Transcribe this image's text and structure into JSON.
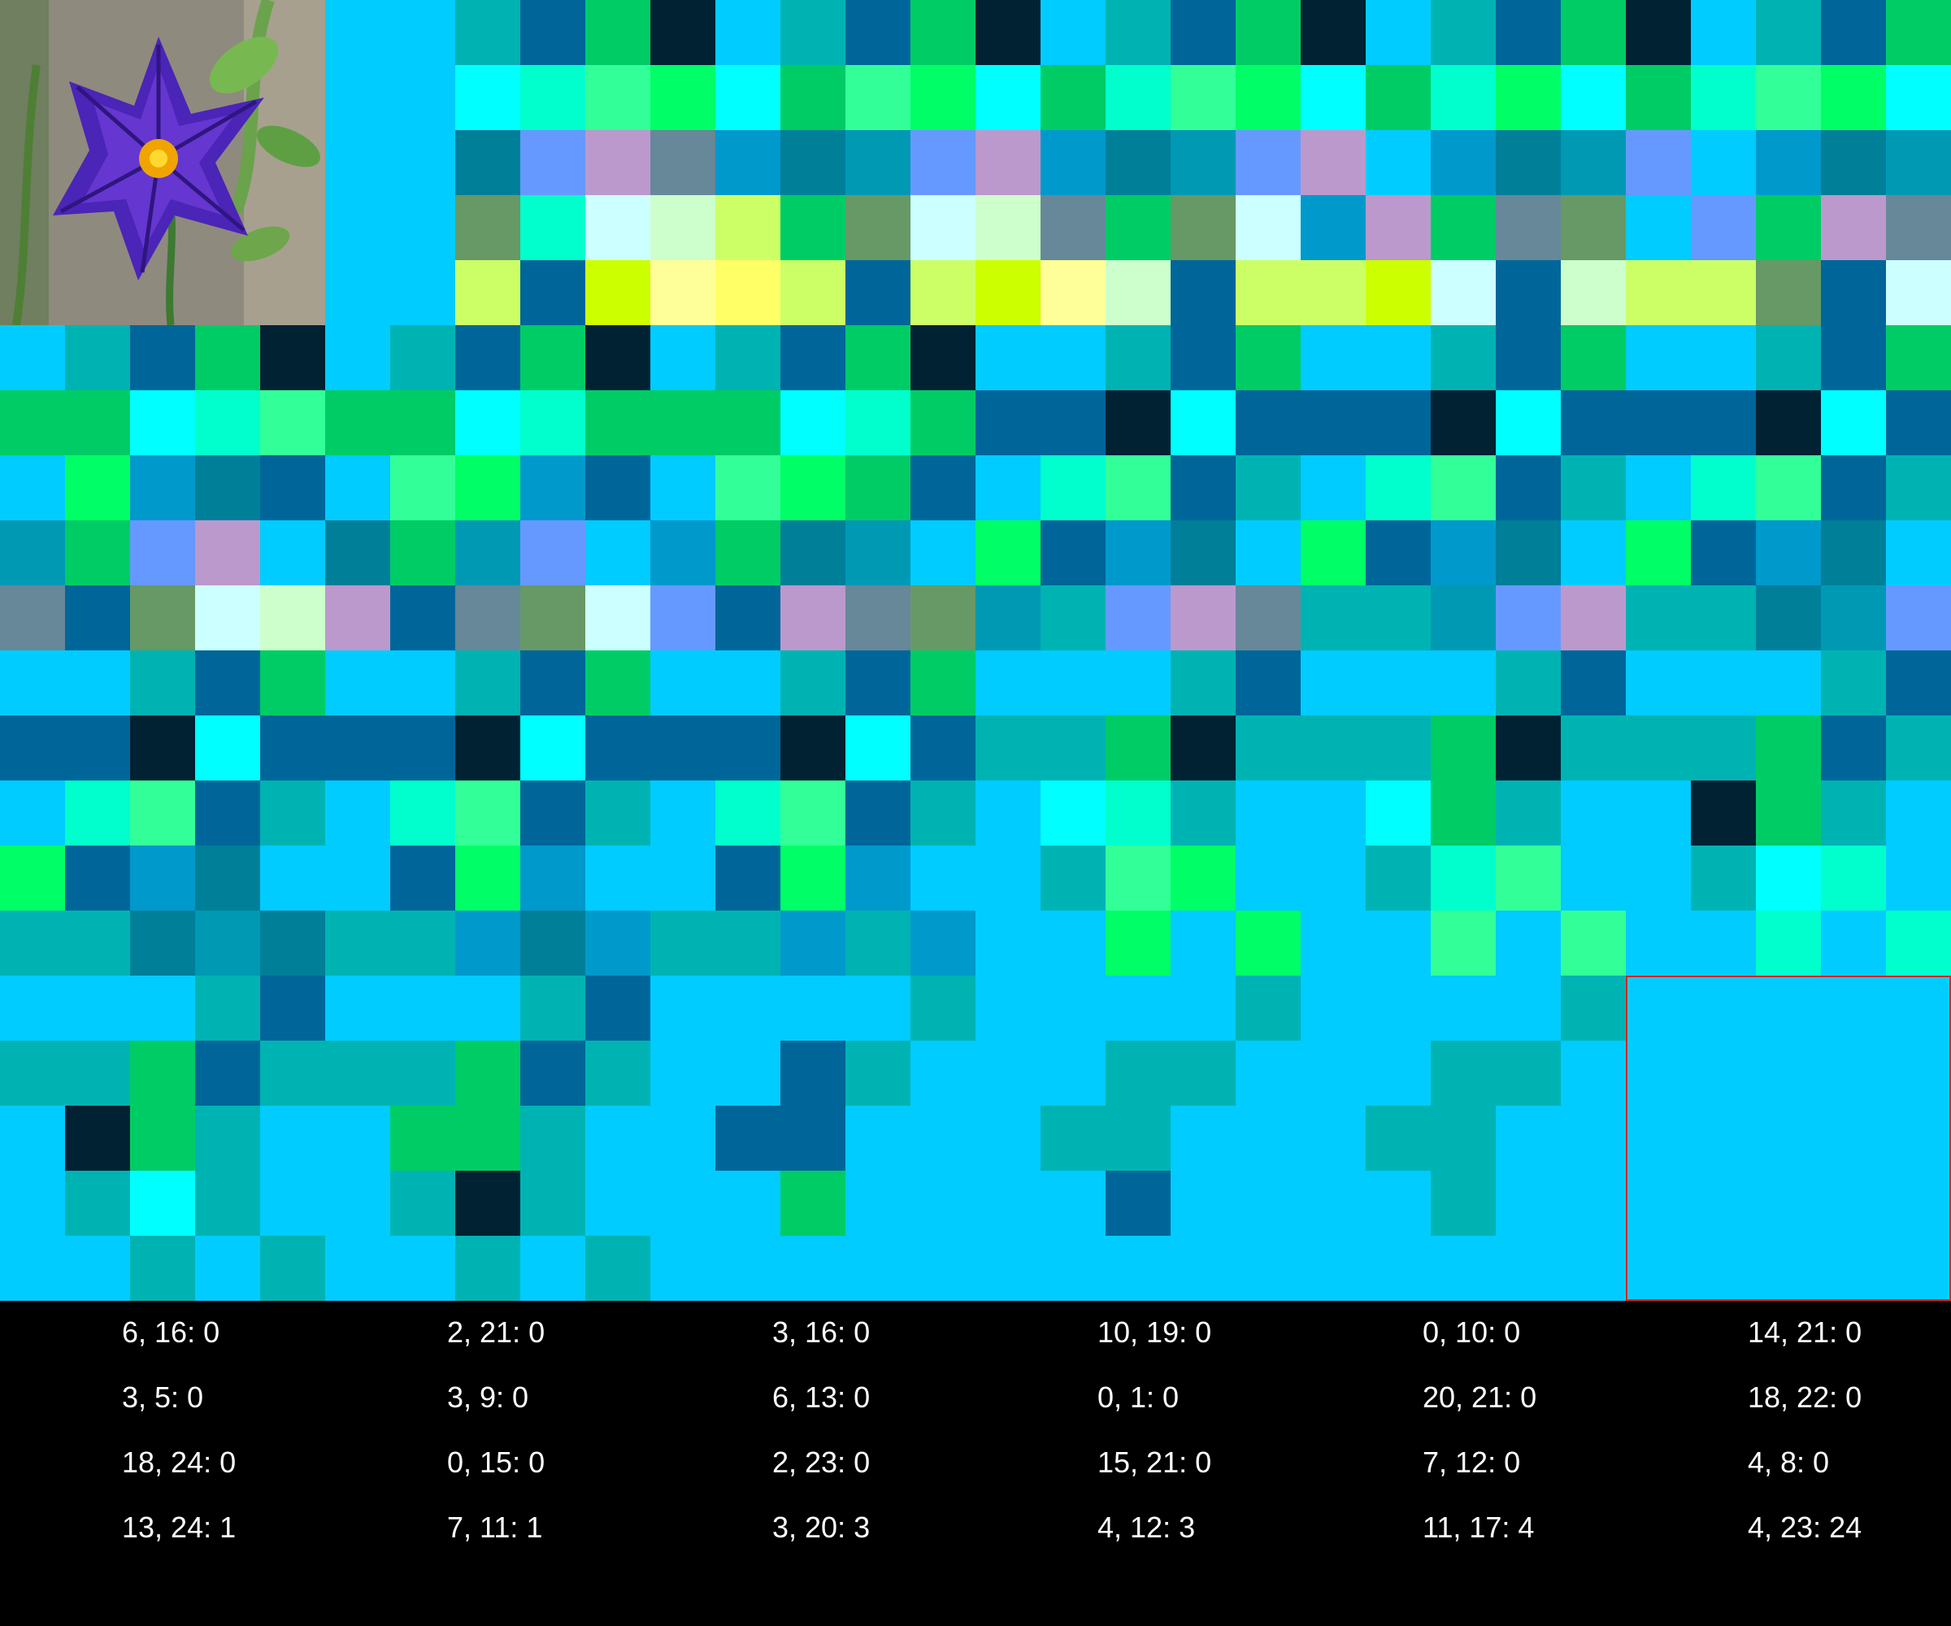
{
  "palette": [
    "#00ccff",
    "#00b3b3",
    "#006699",
    "#00cc66",
    "#002233",
    "#00ffff",
    "#00ffcc",
    "#33ff99",
    "#00ff66",
    "#0099cc",
    "#007f99",
    "#0099b3",
    "#6699ff",
    "#bb99cc",
    "#668899",
    "#669966",
    "#ccffff",
    "#ccffcc",
    "#ccff66",
    "#ffff99",
    "#ffff66",
    "#ccff00"
  ],
  "grid": [
    [
      0,
      0,
      0,
      0,
      0,
      0,
      0,
      1,
      2,
      3,
      4,
      0,
      1,
      2,
      3,
      4,
      0,
      1,
      2,
      3,
      4,
      0,
      1,
      2,
      3,
      4,
      0,
      1,
      2,
      3
    ],
    [
      0,
      0,
      0,
      0,
      0,
      0,
      0,
      5,
      6,
      7,
      8,
      5,
      3,
      7,
      8,
      5,
      3,
      6,
      7,
      8,
      5,
      3,
      6,
      8,
      5,
      3,
      6,
      7,
      8,
      5
    ],
    [
      0,
      0,
      0,
      0,
      0,
      0,
      0,
      10,
      12,
      13,
      14,
      9,
      10,
      11,
      12,
      13,
      9,
      10,
      11,
      12,
      13,
      0,
      9,
      10,
      11,
      12,
      0,
      9,
      10,
      11
    ],
    [
      0,
      0,
      0,
      0,
      0,
      0,
      0,
      15,
      6,
      16,
      17,
      18,
      3,
      15,
      16,
      17,
      14,
      3,
      15,
      16,
      9,
      13,
      3,
      14,
      15,
      0,
      12,
      3,
      13,
      14
    ],
    [
      0,
      0,
      0,
      0,
      0,
      0,
      0,
      18,
      2,
      21,
      19,
      20,
      18,
      2,
      18,
      21,
      19,
      17,
      2,
      18,
      18,
      21,
      16,
      2,
      17,
      18,
      18,
      15,
      2,
      16
    ],
    [
      0,
      1,
      2,
      3,
      4,
      0,
      1,
      2,
      3,
      4,
      0,
      1,
      2,
      3,
      4,
      0,
      0,
      1,
      2,
      3,
      0,
      0,
      1,
      2,
      3,
      0,
      0,
      1,
      2,
      3
    ],
    [
      3,
      3,
      5,
      6,
      7,
      3,
      3,
      5,
      6,
      3,
      3,
      3,
      5,
      6,
      3,
      2,
      2,
      4,
      5,
      2,
      2,
      2,
      4,
      5,
      2,
      2,
      2,
      4,
      5,
      2
    ],
    [
      0,
      8,
      9,
      10,
      2,
      0,
      7,
      8,
      9,
      2,
      0,
      7,
      8,
      3,
      2,
      0,
      6,
      7,
      2,
      1,
      0,
      6,
      7,
      2,
      1,
      0,
      6,
      7,
      2,
      1
    ],
    [
      11,
      3,
      12,
      13,
      0,
      10,
      3,
      11,
      12,
      0,
      9,
      3,
      10,
      11,
      0,
      8,
      2,
      9,
      10,
      0,
      8,
      2,
      9,
      10,
      0,
      8,
      2,
      9,
      10,
      0
    ],
    [
      14,
      2,
      15,
      16,
      17,
      13,
      2,
      14,
      15,
      16,
      12,
      2,
      13,
      14,
      15,
      11,
      1,
      12,
      13,
      14,
      1,
      1,
      11,
      12,
      13,
      1,
      1,
      10,
      11,
      12
    ],
    [
      0,
      0,
      1,
      2,
      3,
      0,
      0,
      1,
      2,
      3,
      0,
      0,
      1,
      2,
      3,
      0,
      0,
      0,
      1,
      2,
      0,
      0,
      0,
      1,
      2,
      0,
      0,
      0,
      1,
      2
    ],
    [
      2,
      2,
      4,
      5,
      2,
      2,
      2,
      4,
      5,
      2,
      2,
      2,
      4,
      5,
      2,
      1,
      1,
      3,
      4,
      1,
      1,
      1,
      3,
      4,
      1,
      1,
      1,
      3,
      2,
      1
    ],
    [
      0,
      6,
      7,
      2,
      1,
      0,
      6,
      7,
      2,
      1,
      0,
      6,
      7,
      2,
      1,
      0,
      5,
      6,
      1,
      0,
      0,
      5,
      3,
      1,
      0,
      0,
      4,
      3,
      1,
      0
    ],
    [
      8,
      2,
      9,
      10,
      0,
      0,
      2,
      8,
      9,
      0,
      0,
      2,
      8,
      9,
      0,
      0,
      1,
      7,
      8,
      0,
      0,
      1,
      6,
      7,
      0,
      0,
      1,
      5,
      6,
      0
    ],
    [
      1,
      1,
      10,
      11,
      10,
      1,
      1,
      9,
      10,
      9,
      1,
      1,
      9,
      1,
      9,
      0,
      0,
      8,
      0,
      8,
      0,
      0,
      7,
      0,
      7,
      0,
      0,
      6,
      0,
      6
    ],
    [
      0,
      0,
      0,
      1,
      2,
      0,
      0,
      0,
      1,
      2,
      0,
      0,
      0,
      0,
      1,
      0,
      0,
      0,
      0,
      1,
      0,
      0,
      0,
      0,
      1,
      0,
      0,
      0,
      0,
      0
    ],
    [
      1,
      1,
      3,
      2,
      1,
      1,
      1,
      3,
      2,
      1,
      0,
      0,
      2,
      1,
      0,
      0,
      0,
      1,
      1,
      0,
      0,
      0,
      1,
      1,
      0,
      0,
      0,
      0,
      0,
      0
    ],
    [
      0,
      4,
      3,
      1,
      0,
      0,
      3,
      3,
      1,
      0,
      0,
      2,
      2,
      0,
      0,
      0,
      1,
      1,
      0,
      0,
      0,
      1,
      1,
      0,
      0,
      0,
      0,
      0,
      0,
      0
    ],
    [
      0,
      1,
      5,
      1,
      0,
      0,
      1,
      4,
      1,
      0,
      0,
      0,
      3,
      0,
      0,
      0,
      0,
      2,
      0,
      0,
      0,
      0,
      1,
      0,
      0,
      0,
      0,
      0,
      0,
      0
    ],
    [
      0,
      0,
      1,
      0,
      1,
      0,
      0,
      1,
      0,
      1,
      0,
      0,
      0,
      0,
      0,
      0,
      0,
      0,
      0,
      0,
      0,
      0,
      0,
      0,
      0,
      0,
      0,
      0,
      0,
      0
    ]
  ],
  "stats": [
    [
      "6, 16: 0",
      "2, 21: 0",
      "3, 16: 0",
      "10, 19: 0",
      "0, 10: 0",
      "14, 21: 0"
    ],
    [
      "3, 5: 0",
      "3, 9: 0",
      "6, 13: 0",
      "0, 1: 0",
      "20, 21: 0",
      "18, 22: 0"
    ],
    [
      "18, 24: 0",
      "0, 15: 0",
      "2, 23: 0",
      "15, 21: 0",
      "7, 12: 0",
      "4, 8: 0"
    ],
    [
      "13, 24: 1",
      "7, 11: 1",
      "3, 20: 3",
      "4, 12: 3",
      "11, 17: 4",
      "4, 23: 24"
    ]
  ],
  "thumbnail": {
    "icon": "purple-flower-icon"
  },
  "selection": {
    "color": "#ff2020"
  }
}
